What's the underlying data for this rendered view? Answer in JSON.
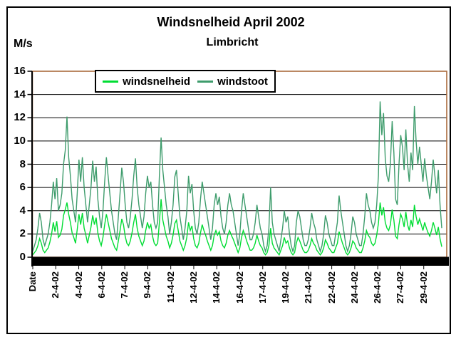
{
  "window": {
    "background": "#FFFFFF",
    "frame_border": "#000000"
  },
  "colors": {
    "plot_border": "#AA6A3C",
    "grid": "#000000",
    "axis": "#000000",
    "text": "#000000",
    "series_windsnelheid": "#00DD33",
    "series_windstoot": "#3E9C6C"
  },
  "chart_data": {
    "type": "line",
    "title": "Windsnelheid April 2002",
    "subtitle": "Limbricht",
    "ylabel": "M/s",
    "xlabel": "",
    "ylim": [
      0,
      16
    ],
    "y_ticks": [
      0,
      2,
      4,
      6,
      8,
      10,
      12,
      14,
      16
    ],
    "grid": "horizontal",
    "legend_position": "top-inside",
    "x_labels": [
      "Date",
      "2-4-02",
      "4-4-02",
      "6-4-02",
      "7-4-02",
      "9-4-02",
      "11-4-02",
      "12-4-02",
      "14-4-02",
      "16-4-02",
      "17-4-02",
      "19-4-02",
      "21-4-02",
      "22-4-02",
      "24-4-02",
      "26-4-02",
      "27-4-02",
      "29-4-02"
    ],
    "series": [
      {
        "name": "windsnelheid",
        "color": "#00DD33",
        "values": [
          0.2,
          0.4,
          0.6,
          1,
          1.6,
          1.2,
          0.6,
          0.4,
          0.6,
          0.8,
          1.3,
          2,
          3,
          2.2,
          3.1,
          1.7,
          1.9,
          2.4,
          3.6,
          4.1,
          4.7,
          3.7,
          3,
          2.1,
          1.7,
          1.2,
          2.4,
          3.7,
          2.8,
          3.8,
          2.5,
          1.9,
          1.2,
          1.9,
          2.6,
          3.6,
          2.8,
          3.4,
          2.1,
          1.4,
          1,
          1.7,
          2.8,
          3.7,
          3,
          2.3,
          1.6,
          1.2,
          0.8,
          0.6,
          1.4,
          2.3,
          3.3,
          2.8,
          1.8,
          1.2,
          1,
          1.4,
          2.1,
          3,
          3.7,
          2.5,
          1.8,
          1.4,
          1,
          1.4,
          2.3,
          3,
          2.5,
          2.8,
          1.8,
          1.2,
          1,
          1.2,
          3,
          5,
          3.2,
          2.5,
          1.8,
          1.4,
          0.8,
          1.2,
          1.9,
          2.9,
          3.2,
          2.3,
          1.4,
          1,
          0.6,
          1,
          1.7,
          3,
          2.3,
          2.7,
          1.6,
          1,
          0.8,
          1.2,
          2.1,
          2.8,
          2.3,
          1.9,
          1.4,
          1,
          0.6,
          1,
          1.9,
          2.3,
          1.9,
          2.2,
          1.4,
          1,
          0.8,
          1.2,
          1.9,
          2.3,
          1.9,
          1.6,
          1.2,
          0.8,
          0.4,
          0.8,
          1.7,
          2.3,
          1.9,
          1.4,
          1,
          0.6,
          0.6,
          0.8,
          1.2,
          1.9,
          1.4,
          1,
          0.8,
          0.4,
          0.2,
          0.4,
          1,
          2.5,
          1.2,
          0.8,
          0.6,
          0.4,
          0.2,
          0.6,
          1,
          1.7,
          1.2,
          1.4,
          0.8,
          0.4,
          0.2,
          0.4,
          1.2,
          1.7,
          1.4,
          1,
          0.6,
          0.4,
          0.4,
          0.6,
          1,
          1.6,
          1.2,
          1,
          0.6,
          0.4,
          0.2,
          0.4,
          0.8,
          1.5,
          1.2,
          0.8,
          0.6,
          0.4,
          0.4,
          0.8,
          1.2,
          2.2,
          1.7,
          1.2,
          0.8,
          0.4,
          0.2,
          0.4,
          0.8,
          1.4,
          1.2,
          0.8,
          0.6,
          0.4,
          0.4,
          0.8,
          1.4,
          2.3,
          1.9,
          1.7,
          1.2,
          1,
          1.2,
          1.9,
          2.9,
          4.7,
          3.6,
          4.3,
          3,
          2.5,
          2.3,
          2.8,
          4.1,
          3.2,
          1.8,
          1.6,
          2.8,
          3.7,
          3.3,
          2.6,
          3.9,
          2.8,
          2.3,
          3.2,
          2.6,
          4.5,
          3.5,
          2.8,
          3.3,
          2.8,
          2.3,
          3,
          2.5,
          2.1,
          1.8,
          2.3,
          3,
          2.5,
          1.9,
          2.6,
          1.6,
          0.9
        ]
      },
      {
        "name": "windstoot",
        "color": "#3E9C6C",
        "values": [
          0.5,
          1,
          1.5,
          2.5,
          3.8,
          3,
          1.5,
          1,
          1.5,
          2,
          3,
          4.5,
          6.5,
          5,
          6.8,
          4,
          4.5,
          5.5,
          8,
          9.2,
          12.1,
          8.6,
          7,
          5,
          4,
          3,
          5.5,
          8.4,
          6.5,
          8.6,
          6,
          4.5,
          3,
          4.5,
          6,
          8.3,
          6.5,
          7.8,
          5,
          3.5,
          2.5,
          4,
          6.5,
          8.6,
          7,
          5.5,
          4,
          3,
          2,
          1.5,
          3.5,
          5.5,
          7.7,
          6.5,
          4.5,
          3,
          2.5,
          3.5,
          5,
          7,
          8.5,
          6,
          4.5,
          3.5,
          2.5,
          3.5,
          5.5,
          7,
          6,
          6.5,
          4.5,
          3,
          2.5,
          3,
          7,
          10.3,
          7.5,
          6,
          4.5,
          3.5,
          2,
          3,
          4.5,
          6.9,
          7.5,
          5.5,
          3.5,
          2.5,
          1.5,
          2.5,
          4,
          7,
          5.5,
          6.3,
          4,
          2.5,
          2,
          3,
          5,
          6.5,
          5.5,
          4.5,
          3.5,
          2.5,
          1.5,
          2.5,
          4.5,
          5.5,
          4.5,
          5.2,
          3.5,
          2.5,
          2,
          3,
          4.5,
          5.5,
          4.5,
          4,
          3,
          2,
          1,
          2,
          4,
          5.5,
          4.5,
          3.5,
          2.5,
          1.5,
          1.5,
          2,
          3,
          4.5,
          3.5,
          2.5,
          2,
          1,
          0.5,
          1,
          2.5,
          6,
          3,
          2,
          1.5,
          1,
          0.5,
          1.5,
          2.5,
          4,
          3,
          3.5,
          2,
          1,
          0.5,
          1,
          3,
          4,
          3.5,
          2.5,
          1.5,
          1,
          1,
          1.5,
          2.5,
          3.8,
          3,
          2.5,
          1.5,
          1,
          0.5,
          1,
          2,
          3.6,
          3,
          2,
          1.5,
          1,
          1,
          2,
          3,
          5.3,
          4,
          3,
          2,
          1,
          0.5,
          1,
          2,
          3.5,
          3,
          2,
          1.5,
          1,
          1,
          2,
          3.5,
          5.5,
          4.5,
          4,
          3,
          2.5,
          3,
          4.5,
          7,
          13.4,
          10.5,
          12.4,
          8.5,
          7,
          6.5,
          8,
          11.7,
          9,
          5,
          4.5,
          8,
          10.5,
          9.5,
          7.5,
          11,
          8,
          6.5,
          9,
          7.5,
          13,
          10,
          8,
          9.5,
          8,
          6.5,
          8.5,
          7,
          6,
          5,
          6.5,
          8.4,
          7,
          5.5,
          7.5,
          4.5,
          2.5
        ]
      }
    ]
  }
}
